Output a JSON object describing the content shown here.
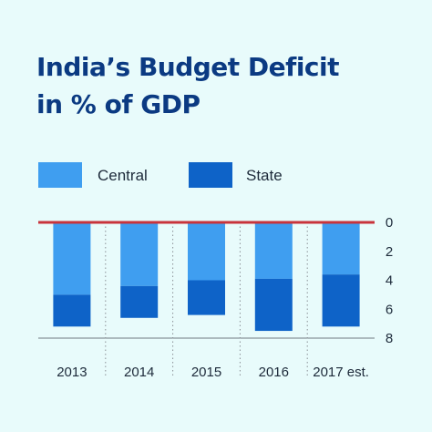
{
  "title_lines": [
    "India’s Budget Deficit",
    "in % of GDP"
  ],
  "legend": [
    {
      "label": "Central",
      "color": "#3f9ef0"
    },
    {
      "label": "State",
      "color": "#0e63c8"
    }
  ],
  "chart_data": {
    "type": "bar",
    "stacked": true,
    "orientation": "downward",
    "title": "India’s Budget Deficit in % of GDP",
    "categories": [
      "2013",
      "2014",
      "2015",
      "2016",
      "2017 est."
    ],
    "series": [
      {
        "name": "Central",
        "values": [
          5.0,
          4.4,
          4.0,
          3.9,
          3.6
        ],
        "color": "#3f9ef0"
      },
      {
        "name": "State",
        "values": [
          2.2,
          2.2,
          2.4,
          3.6,
          3.6
        ],
        "color": "#0e63c8"
      }
    ],
    "ylim": [
      0,
      8
    ],
    "yticks": [
      "0",
      "2",
      "4",
      "6",
      "8"
    ],
    "reference_line": {
      "value": 0,
      "color": "#c8333b"
    },
    "grid": false,
    "legend_position": "top"
  }
}
